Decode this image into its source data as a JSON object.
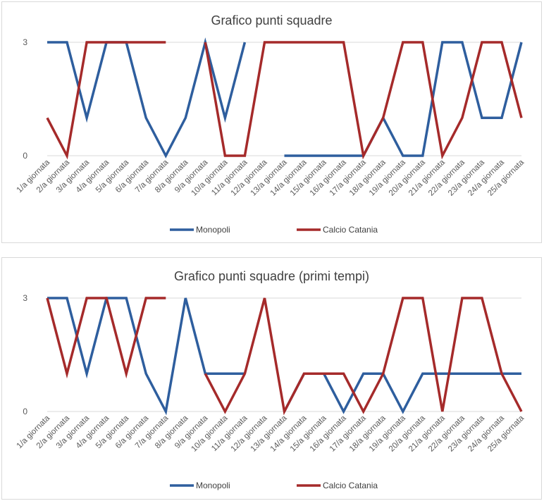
{
  "chart_data": [
    {
      "type": "line",
      "title": "Grafico punti squadre",
      "categories": [
        "1/a giornata",
        "2/a giornata",
        "3/a giornata",
        "4/a giornata",
        "5/a giornata",
        "6/a giornata",
        "7/a giornata",
        "8/a giornata",
        "9/a giornata",
        "10/a giornata",
        "11/a giornata",
        "12/a giornata",
        "13/a giornata",
        "14/a giornata",
        "15/a giornata",
        "16/a giornata",
        "17/a giornata",
        "18/a giornata",
        "19/a giornata",
        "20/a giornata",
        "21/a giornata",
        "22/a giornata",
        "23/a giornata",
        "24/a giornata",
        "25/a giornata"
      ],
      "ylim": [
        0,
        3
      ],
      "yticks": [
        "0",
        "3"
      ],
      "grid": true,
      "legend_position": "bottom",
      "series": [
        {
          "name": "Monopoli",
          "color": "#2e5e9e",
          "values": [
            3,
            3,
            1,
            3,
            3,
            1,
            0,
            1,
            3,
            1,
            3,
            null,
            0,
            0,
            0,
            0,
            0,
            1,
            0,
            0,
            3,
            3,
            1,
            1,
            3
          ]
        },
        {
          "name": "Calcio Catania",
          "color": "#a52a2a",
          "values": [
            1,
            0,
            3,
            3,
            3,
            3,
            3,
            null,
            3,
            0,
            0,
            3,
            3,
            3,
            3,
            3,
            0,
            1,
            3,
            3,
            0,
            1,
            3,
            3,
            1
          ]
        }
      ]
    },
    {
      "type": "line",
      "title": "Grafico punti squadre (primi tempi)",
      "categories": [
        "1/a giornata",
        "2/a giornata",
        "3/a giornata",
        "4/a giornata",
        "5/a giornata",
        "6/a giornata",
        "7/a giornata",
        "8/a giornata",
        "9/a giornata",
        "10/a giornata",
        "11/a giornata",
        "12/a giornata",
        "13/a giornata",
        "14/a giornata",
        "15/a giornata",
        "16/a giornata",
        "17/a giornata",
        "18/a giornata",
        "19/a giornata",
        "20/a giornata",
        "21/a giornata",
        "22/a giornata",
        "23/a giornata",
        "24/a giornata",
        "25/a giornata"
      ],
      "ylim": [
        0,
        3
      ],
      "yticks": [
        "0",
        "3"
      ],
      "grid": true,
      "legend_position": "bottom",
      "series": [
        {
          "name": "Monopoli",
          "color": "#2e5e9e",
          "values": [
            3,
            3,
            1,
            3,
            3,
            1,
            0,
            3,
            1,
            1,
            1,
            null,
            0,
            1,
            1,
            0,
            1,
            1,
            0,
            1,
            1,
            1,
            1,
            1,
            1
          ]
        },
        {
          "name": "Calcio Catania",
          "color": "#a52a2a",
          "values": [
            3,
            1,
            3,
            3,
            1,
            3,
            3,
            null,
            1,
            0,
            1,
            3,
            0,
            1,
            1,
            1,
            0,
            1,
            3,
            3,
            0,
            3,
            3,
            1,
            0
          ]
        }
      ]
    }
  ]
}
